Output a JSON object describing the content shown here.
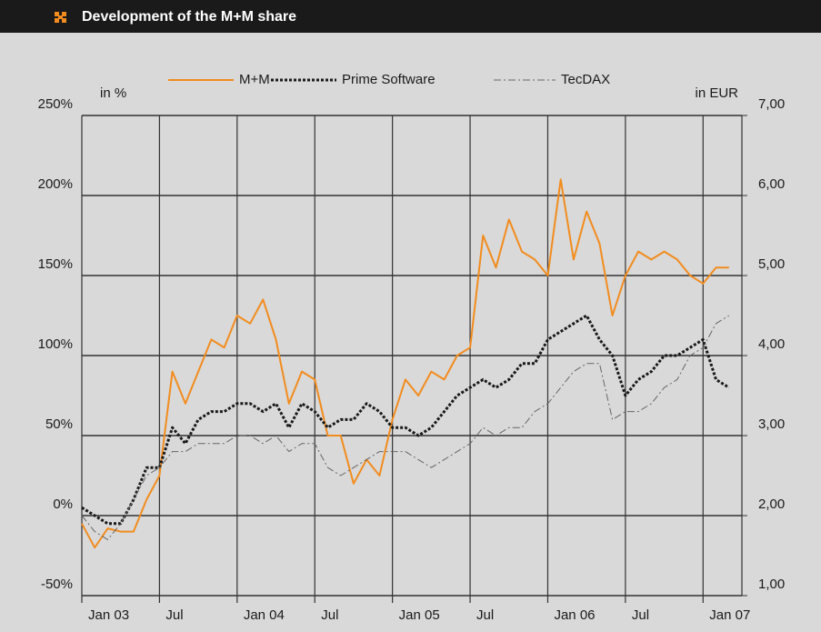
{
  "chart_data": {
    "type": "line",
    "title": "Development of the M+M share",
    "y_label": "in %",
    "y2_label": "in EUR",
    "x": [
      "2003-01",
      "2003-02",
      "2003-03",
      "2003-04",
      "2003-05",
      "2003-06",
      "2003-07",
      "2003-08",
      "2003-09",
      "2003-10",
      "2003-11",
      "2003-12",
      "2004-01",
      "2004-02",
      "2004-03",
      "2004-04",
      "2004-05",
      "2004-06",
      "2004-07",
      "2004-08",
      "2004-09",
      "2004-10",
      "2004-11",
      "2004-12",
      "2005-01",
      "2005-02",
      "2005-03",
      "2005-04",
      "2005-05",
      "2005-06",
      "2005-07",
      "2005-08",
      "2005-09",
      "2005-10",
      "2005-11",
      "2005-12",
      "2006-01",
      "2006-02",
      "2006-03",
      "2006-04",
      "2006-05",
      "2006-06",
      "2006-07",
      "2006-08",
      "2006-09",
      "2006-10",
      "2006-11",
      "2006-12",
      "2007-01",
      "2007-02",
      "2007-03"
    ],
    "series": [
      {
        "name": "M+M",
        "color": "#f28c1e",
        "line_style": "solid",
        "values": [
          -5,
          -20,
          -8,
          -10,
          -10,
          10,
          25,
          90,
          70,
          90,
          110,
          105,
          125,
          120,
          135,
          110,
          70,
          90,
          85,
          50,
          50,
          20,
          35,
          25,
          60,
          85,
          75,
          90,
          85,
          100,
          105,
          175,
          155,
          185,
          165,
          160,
          150,
          210,
          160,
          190,
          170,
          125,
          150,
          165,
          160,
          165,
          160,
          150,
          145,
          155,
          155
        ]
      },
      {
        "name": "Prime Software",
        "color": "#1a1a1a",
        "line_style": "dotted",
        "values": [
          5,
          0,
          -5,
          -5,
          10,
          30,
          30,
          55,
          45,
          60,
          65,
          65,
          70,
          70,
          65,
          70,
          55,
          70,
          65,
          55,
          60,
          60,
          70,
          65,
          55,
          55,
          50,
          55,
          65,
          75,
          80,
          85,
          80,
          85,
          95,
          95,
          110,
          115,
          120,
          125,
          110,
          100,
          75,
          85,
          90,
          100,
          100,
          105,
          110,
          85,
          80
        ]
      },
      {
        "name": "TecDAX",
        "color": "#666666",
        "line_style": "dash-dot",
        "values": [
          0,
          -10,
          -15,
          -5,
          10,
          25,
          30,
          40,
          40,
          45,
          45,
          45,
          50,
          50,
          45,
          50,
          40,
          45,
          45,
          30,
          25,
          30,
          35,
          40,
          40,
          40,
          35,
          30,
          35,
          40,
          45,
          55,
          50,
          55,
          55,
          65,
          70,
          80,
          90,
          95,
          95,
          60,
          65,
          65,
          70,
          80,
          85,
          100,
          105,
          120,
          125
        ]
      }
    ],
    "xlim": [
      "2003-01",
      "2007-04"
    ],
    "xticks": [
      {
        "value": "2003-01",
        "label": "Jan 03"
      },
      {
        "value": "2003-07",
        "label": "Jul"
      },
      {
        "value": "2004-01",
        "label": "Jan 04"
      },
      {
        "value": "2004-07",
        "label": "Jul"
      },
      {
        "value": "2005-01",
        "label": "Jan 05"
      },
      {
        "value": "2005-07",
        "label": "Jul"
      },
      {
        "value": "2006-01",
        "label": "Jan 06"
      },
      {
        "value": "2006-07",
        "label": "Jul"
      },
      {
        "value": "2007-01",
        "label": "Jan 07"
      }
    ],
    "ylim": [
      -50,
      250
    ],
    "yticks": [
      {
        "value": -50,
        "label": "-50%"
      },
      {
        "value": 0,
        "label": "0%"
      },
      {
        "value": 50,
        "label": "50%"
      },
      {
        "value": 100,
        "label": "100%"
      },
      {
        "value": 150,
        "label": "150%"
      },
      {
        "value": 200,
        "label": "200%"
      },
      {
        "value": 250,
        "label": "250%"
      }
    ],
    "y2lim": [
      1,
      7
    ],
    "y2ticks": [
      {
        "value": 1,
        "label": "1,00"
      },
      {
        "value": 2,
        "label": "2,00"
      },
      {
        "value": 3,
        "label": "3,00"
      },
      {
        "value": 4,
        "label": "4,00"
      },
      {
        "value": 5,
        "label": "5,00"
      },
      {
        "value": 6,
        "label": "6,00"
      },
      {
        "value": 7,
        "label": "7,00"
      }
    ],
    "grid": true,
    "legend": "top"
  }
}
